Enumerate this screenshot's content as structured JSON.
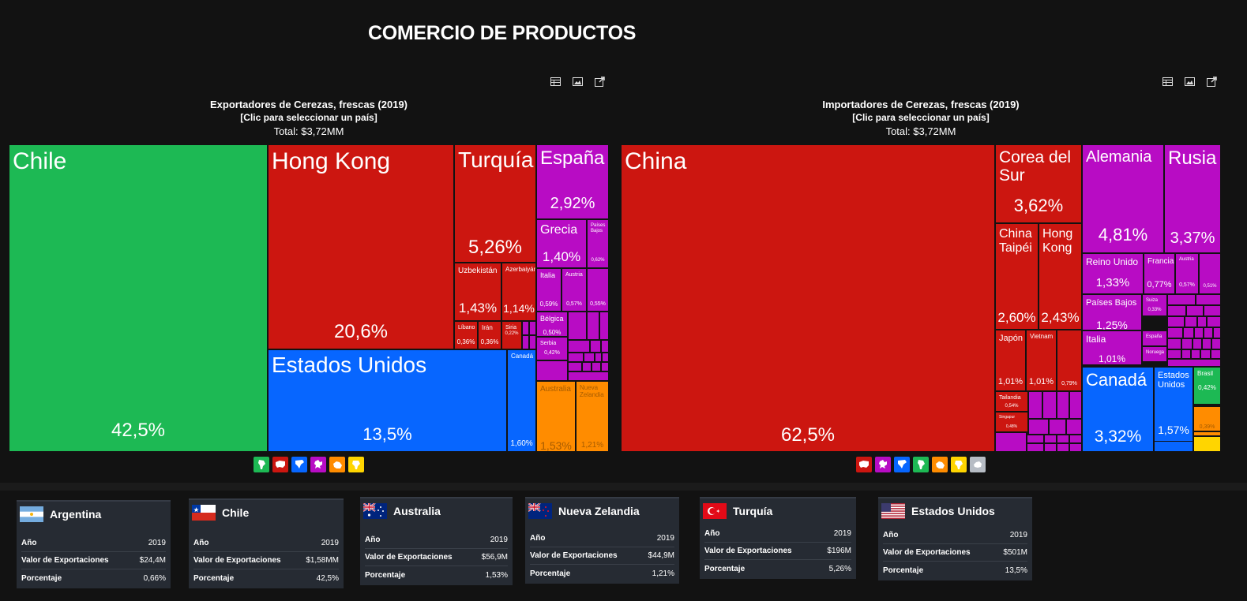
{
  "page_title": "COMERCIO DE PRODUCTOS",
  "exporters": {
    "title": "Exportadores de Cerezas, frescas (2019)",
    "subtitle": "[Clic para seleccionar un país]",
    "total": "Total: $3,72MM"
  },
  "importers": {
    "title": "Importadores de Cerezas, frescas (2019)",
    "subtitle": "[Clic para seleccionar un país]",
    "total": "Total: $3,72MM"
  },
  "chart_data": [
    {
      "type": "treemap",
      "title": "Exportadores de Cerezas, frescas (2019)",
      "items": [
        {
          "name": "Chile",
          "value": "42,5%",
          "region": "Sudamérica"
        },
        {
          "name": "Hong Kong",
          "value": "20,6%",
          "region": "Asia"
        },
        {
          "name": "Turquía",
          "value": "5,26%",
          "region": "Asia"
        },
        {
          "name": "Uzbekistán",
          "value": "1,43%",
          "region": "Asia"
        },
        {
          "name": "Azerbaiyán",
          "value": "1,14%",
          "region": "Asia"
        },
        {
          "name": "Líbano",
          "value": "0,36%",
          "region": "Asia"
        },
        {
          "name": "Irán",
          "value": "0,36%",
          "region": "Asia"
        },
        {
          "name": "Siria",
          "value": "0,22%",
          "region": "Asia"
        },
        {
          "name": "Estados Unidos",
          "value": "13,5%",
          "region": "Norteamérica"
        },
        {
          "name": "Canadá",
          "value": "1,60%",
          "region": "Norteamérica"
        },
        {
          "name": "España",
          "value": "2,92%",
          "region": "Europa"
        },
        {
          "name": "Grecia",
          "value": "1,40%",
          "region": "Europa"
        },
        {
          "name": "Países Bajos",
          "value": "0,62%",
          "region": "Europa"
        },
        {
          "name": "Italia",
          "value": "0,59%",
          "region": "Europa"
        },
        {
          "name": "Austria",
          "value": "0,57%",
          "region": "Europa"
        },
        {
          "name": "",
          "value": "0,55%",
          "region": "Europa"
        },
        {
          "name": "Bélgica",
          "value": "0,50%",
          "region": "Europa"
        },
        {
          "name": "Serbia",
          "value": "0,42%",
          "region": "Europa"
        },
        {
          "name": "Australia",
          "value": "1,53%",
          "region": "Oceanía"
        },
        {
          "name": "Nueva Zelandia",
          "value": "1,21%",
          "region": "Oceanía"
        }
      ]
    },
    {
      "type": "treemap",
      "title": "Importadores de Cerezas, frescas (2019)",
      "items": [
        {
          "name": "China",
          "value": "62,5%",
          "region": "Asia"
        },
        {
          "name": "Corea del Sur",
          "value": "3,62%",
          "region": "Asia"
        },
        {
          "name": "China Taipéi",
          "value": "2,60%",
          "region": "Asia"
        },
        {
          "name": "Hong Kong",
          "value": "2,43%",
          "region": "Asia"
        },
        {
          "name": "Japón",
          "value": "1,01%",
          "region": "Asia"
        },
        {
          "name": "Vietnam",
          "value": "1,01%",
          "region": "Asia"
        },
        {
          "name": "",
          "value": "0,79%",
          "region": "Asia"
        },
        {
          "name": "Tailandia",
          "value": "0,54%",
          "region": "Asia"
        },
        {
          "name": "Singapur",
          "value": "0,48%",
          "region": "Asia"
        },
        {
          "name": "Alemania",
          "value": "4,81%",
          "region": "Europa"
        },
        {
          "name": "Rusia",
          "value": "3,37%",
          "region": "Europa"
        },
        {
          "name": "Reino Unido",
          "value": "1,33%",
          "region": "Europa"
        },
        {
          "name": "Francia",
          "value": "0,77%",
          "region": "Europa"
        },
        {
          "name": "Austria",
          "value": "0,57%",
          "region": "Europa"
        },
        {
          "name": "",
          "value": "0,51%",
          "region": "Europa"
        },
        {
          "name": "Países Bajos",
          "value": "1,25%",
          "region": "Europa"
        },
        {
          "name": "Suiza",
          "value": "0,33%",
          "region": "Europa"
        },
        {
          "name": "Italia",
          "value": "1,01%",
          "region": "Europa"
        },
        {
          "name": "España",
          "value": "",
          "region": "Europa"
        },
        {
          "name": "Noruega",
          "value": "",
          "region": "Europa"
        },
        {
          "name": "Canadá",
          "value": "3,32%",
          "region": "Norteamérica"
        },
        {
          "name": "Estados Unidos",
          "value": "1,57%",
          "region": "Norteamérica"
        },
        {
          "name": "Brasil",
          "value": "0,42%",
          "region": "Sudamérica"
        },
        {
          "name": "",
          "value": "0,39%",
          "region": "Oceanía"
        }
      ]
    }
  ],
  "colors": {
    "sudamerica": "#1db954",
    "asia": "#cc1610",
    "norteamerica": "#0766ff",
    "europa": "#b80cc4",
    "oceania": "#ff8c00",
    "africa": "#ffd500",
    "antartida": "#b6bcc4"
  },
  "legend_exp": [
    "south-america",
    "asia",
    "north-america",
    "europe",
    "oceania",
    "africa"
  ],
  "legend_imp": [
    "asia",
    "europe",
    "north-america",
    "south-america",
    "oceania",
    "africa",
    "antarctica"
  ],
  "cards": [
    {
      "country": "Argentina",
      "year_label": "Año",
      "year": "2019",
      "value_label": "Valor de Exportaciones",
      "value": "$24,4M",
      "pct_label": "Porcentaje",
      "pct": "0,66%"
    },
    {
      "country": "Chile",
      "year_label": "Año",
      "year": "2019",
      "value_label": "Valor de Exportaciones",
      "value": "$1,58MM",
      "pct_label": "Porcentaje",
      "pct": "42,5%"
    },
    {
      "country": "Australia",
      "year_label": "Año",
      "year": "2019",
      "value_label": "Valor de Exportaciones",
      "value": "$56,9M",
      "pct_label": "Porcentaje",
      "pct": "1,53%"
    },
    {
      "country": "Nueva Zelandia",
      "year_label": "Año",
      "year": "2019",
      "value_label": "Valor de Exportaciones",
      "value": "$44,9M",
      "pct_label": "Porcentaje",
      "pct": "1,21%"
    },
    {
      "country": "Turquía",
      "year_label": "Año",
      "year": "2019",
      "value_label": "Valor de Exportaciones",
      "value": "$196M",
      "pct_label": "Porcentaje",
      "pct": "5,26%"
    },
    {
      "country": "Estados Unidos",
      "year_label": "Año",
      "year": "2019",
      "value_label": "Valor de Exportaciones",
      "value": "$501M",
      "pct_label": "Porcentaje",
      "pct": "13,5%"
    }
  ]
}
